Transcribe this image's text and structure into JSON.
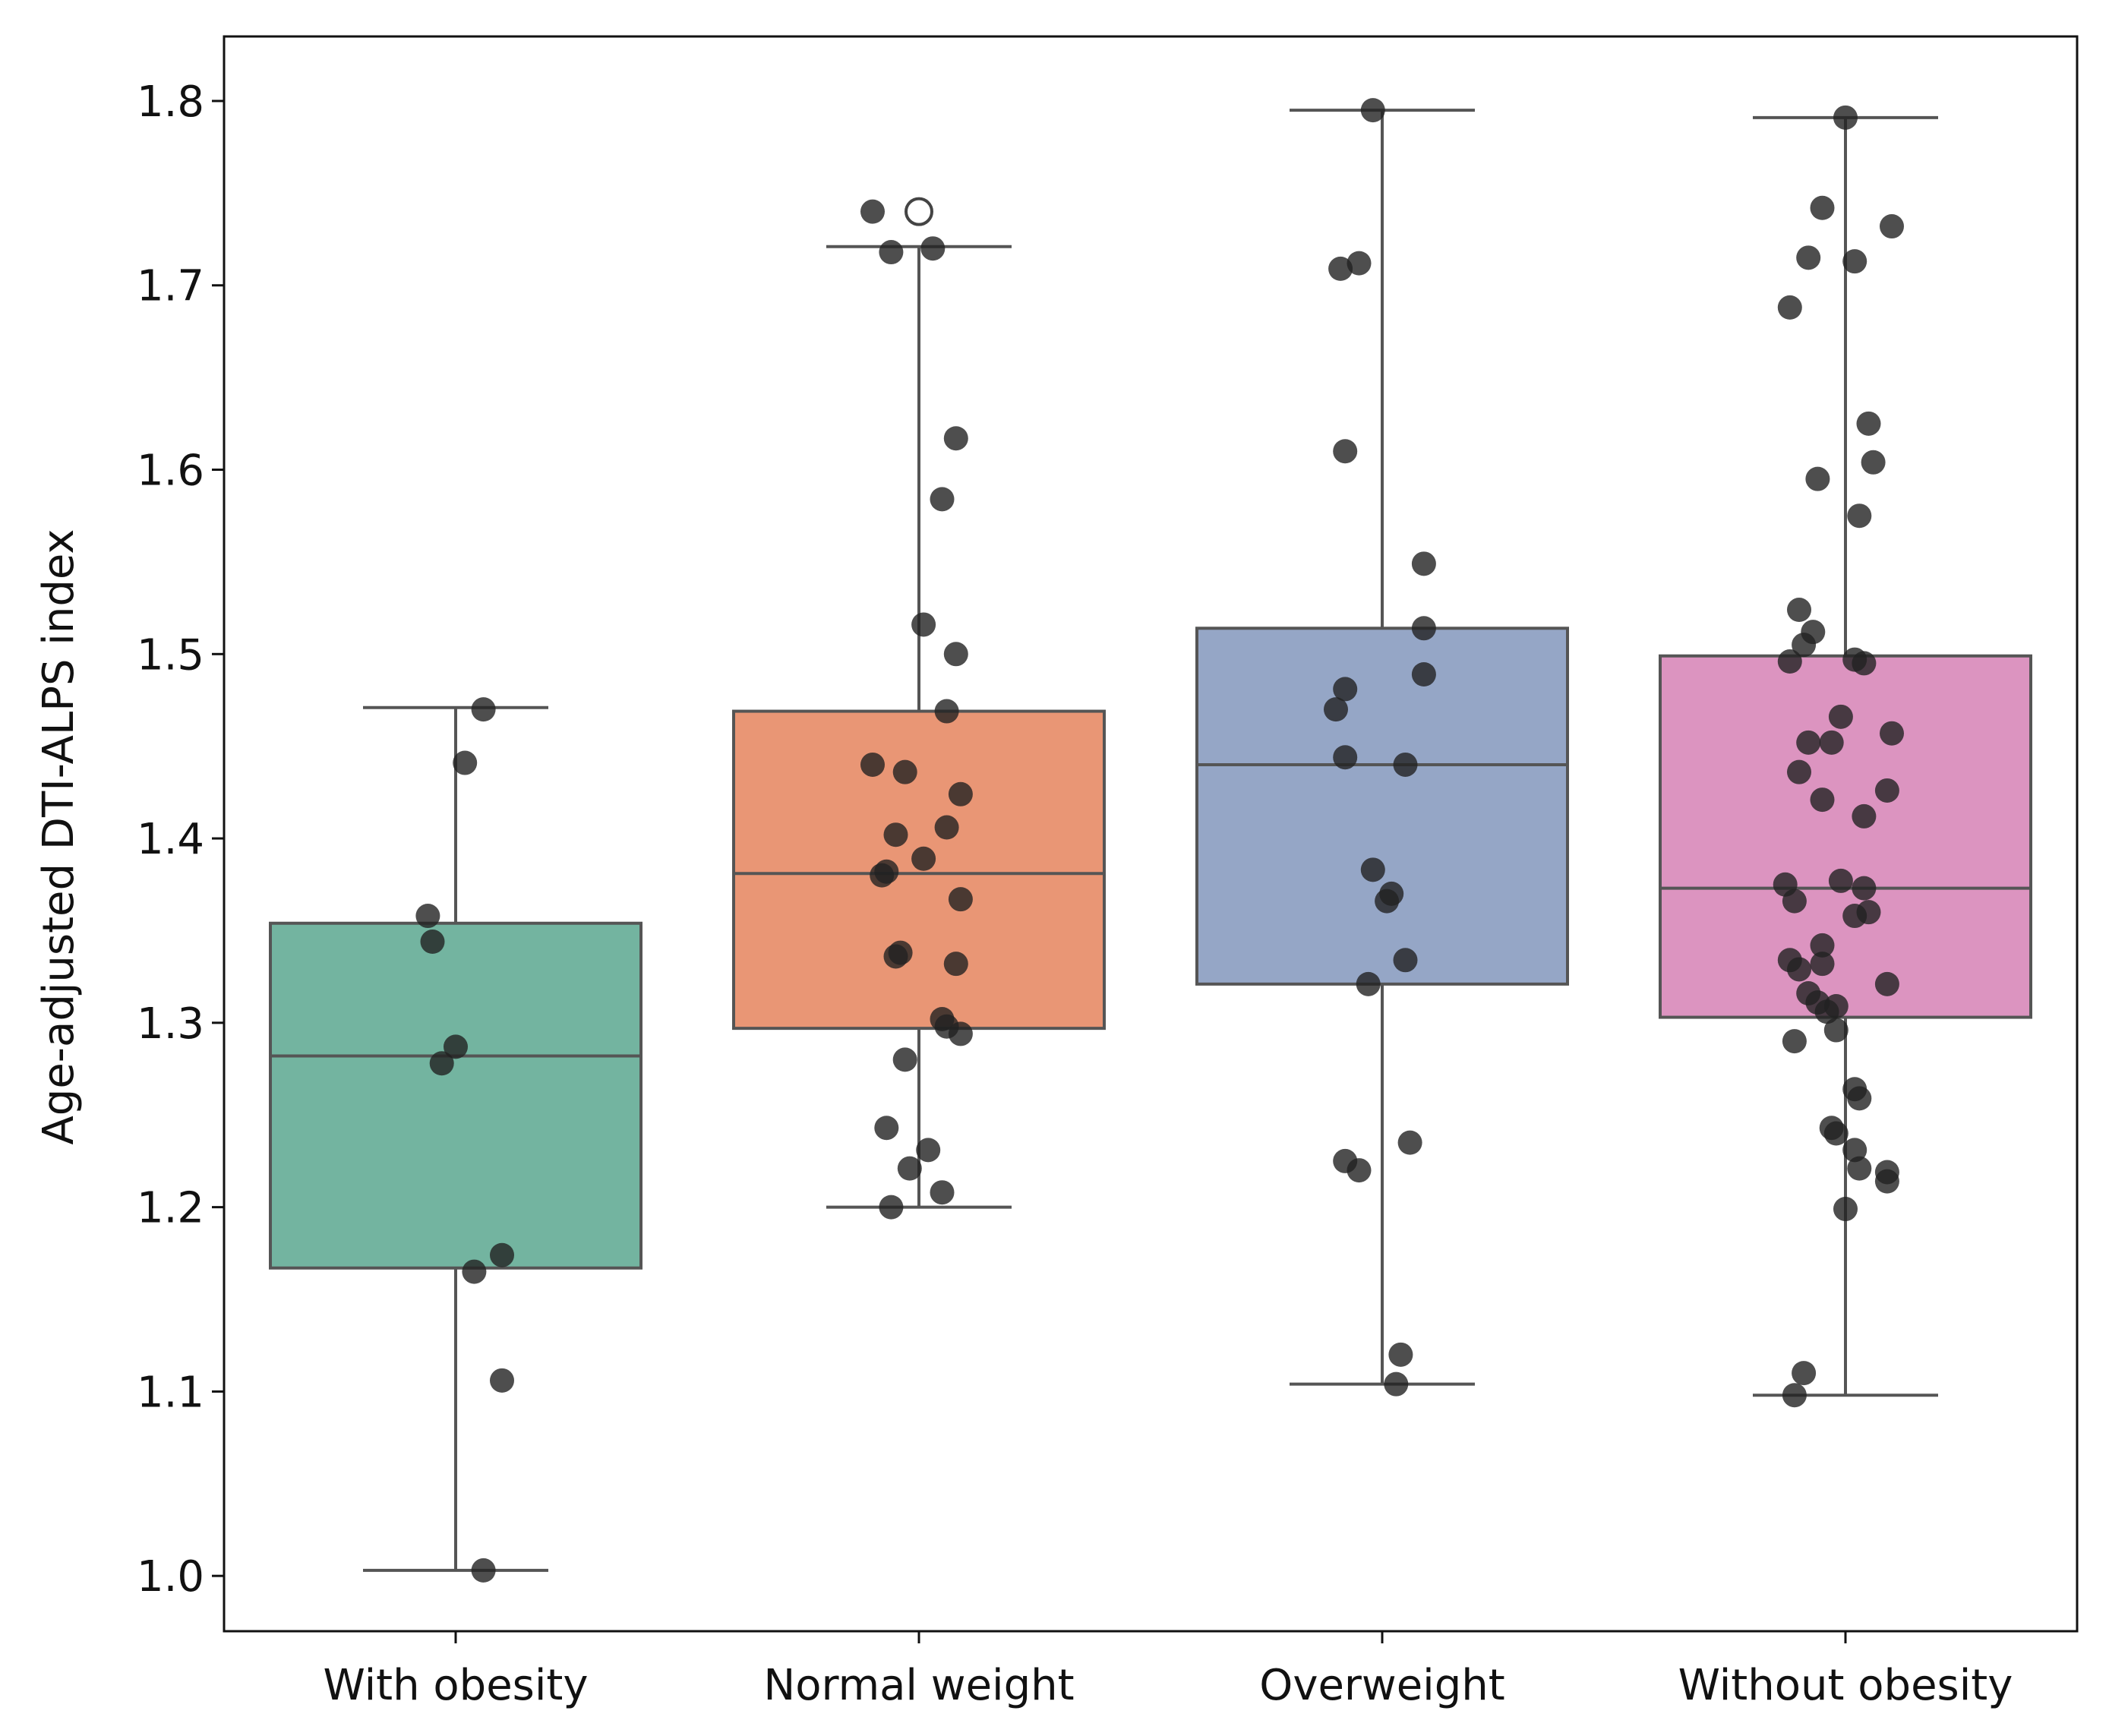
{
  "chart_data": {
    "type": "box",
    "title": "",
    "xlabel": "",
    "ylabel": "Age-adjusted DTI-ALPS index",
    "ylim": [
      0.97,
      1.835
    ],
    "yticks": [
      1.0,
      1.1,
      1.2,
      1.3,
      1.4,
      1.5,
      1.6,
      1.7,
      1.8
    ],
    "ytick_labels": [
      "1.0",
      "1.1",
      "1.2",
      "1.3",
      "1.4",
      "1.5",
      "1.6",
      "1.7",
      "1.8"
    ],
    "grid": false,
    "categories": [
      "With obesity",
      "Normal weight",
      "Overweight",
      "Without obesity"
    ],
    "colors": [
      "#73b4a0",
      "#e99675",
      "#95a6c6",
      "#dc94c0"
    ],
    "point_color": "#222222",
    "boxes": [
      {
        "name": "With obesity",
        "whisker_low": 1.003,
        "q1": 1.167,
        "median": 1.282,
        "q3": 1.354,
        "whisker_high": 1.471,
        "outliers": [],
        "points": [
          {
            "y": 1.47,
            "dx": 0.06
          },
          {
            "y": 1.441,
            "dx": 0.02
          },
          {
            "y": 1.358,
            "dx": -0.06
          },
          {
            "y": 1.344,
            "dx": -0.05
          },
          {
            "y": 1.287,
            "dx": 0.0
          },
          {
            "y": 1.278,
            "dx": -0.03
          },
          {
            "y": 1.174,
            "dx": 0.1
          },
          {
            "y": 1.165,
            "dx": 0.04
          },
          {
            "y": 1.106,
            "dx": 0.1
          },
          {
            "y": 1.003,
            "dx": 0.06
          }
        ]
      },
      {
        "name": "Normal weight",
        "whisker_low": 1.2,
        "q1": 1.297,
        "median": 1.381,
        "q3": 1.469,
        "whisker_high": 1.721,
        "outliers": [
          1.74
        ],
        "points": [
          {
            "y": 1.74,
            "dx": -0.1
          },
          {
            "y": 1.718,
            "dx": -0.06
          },
          {
            "y": 1.72,
            "dx": 0.03
          },
          {
            "y": 1.617,
            "dx": 0.08
          },
          {
            "y": 1.584,
            "dx": 0.05
          },
          {
            "y": 1.516,
            "dx": 0.01
          },
          {
            "y": 1.5,
            "dx": 0.08
          },
          {
            "y": 1.469,
            "dx": 0.06
          },
          {
            "y": 1.44,
            "dx": -0.1
          },
          {
            "y": 1.436,
            "dx": -0.03
          },
          {
            "y": 1.424,
            "dx": 0.09
          },
          {
            "y": 1.406,
            "dx": 0.06
          },
          {
            "y": 1.402,
            "dx": -0.05
          },
          {
            "y": 1.389,
            "dx": 0.01
          },
          {
            "y": 1.38,
            "dx": -0.08
          },
          {
            "y": 1.382,
            "dx": -0.07
          },
          {
            "y": 1.367,
            "dx": 0.09
          },
          {
            "y": 1.338,
            "dx": -0.04
          },
          {
            "y": 1.336,
            "dx": -0.05
          },
          {
            "y": 1.332,
            "dx": 0.08
          },
          {
            "y": 1.302,
            "dx": 0.05
          },
          {
            "y": 1.298,
            "dx": 0.06
          },
          {
            "y": 1.294,
            "dx": 0.09
          },
          {
            "y": 1.28,
            "dx": -0.03
          },
          {
            "y": 1.243,
            "dx": -0.07
          },
          {
            "y": 1.231,
            "dx": 0.02
          },
          {
            "y": 1.221,
            "dx": -0.02
          },
          {
            "y": 1.208,
            "dx": 0.05
          },
          {
            "y": 1.2,
            "dx": -0.06
          }
        ]
      },
      {
        "name": "Overweight",
        "whisker_low": 1.104,
        "q1": 1.321,
        "median": 1.44,
        "q3": 1.514,
        "whisker_high": 1.795,
        "outliers": [],
        "points": [
          {
            "y": 1.795,
            "dx": -0.02
          },
          {
            "y": 1.712,
            "dx": -0.05
          },
          {
            "y": 1.709,
            "dx": -0.09
          },
          {
            "y": 1.61,
            "dx": -0.08
          },
          {
            "y": 1.549,
            "dx": 0.09
          },
          {
            "y": 1.514,
            "dx": 0.09
          },
          {
            "y": 1.489,
            "dx": 0.09
          },
          {
            "y": 1.481,
            "dx": -0.08
          },
          {
            "y": 1.47,
            "dx": -0.1
          },
          {
            "y": 1.444,
            "dx": -0.08
          },
          {
            "y": 1.44,
            "dx": 0.05
          },
          {
            "y": 1.383,
            "dx": -0.02
          },
          {
            "y": 1.37,
            "dx": 0.02
          },
          {
            "y": 1.366,
            "dx": 0.01
          },
          {
            "y": 1.334,
            "dx": 0.05
          },
          {
            "y": 1.321,
            "dx": -0.03
          },
          {
            "y": 1.235,
            "dx": 0.06
          },
          {
            "y": 1.225,
            "dx": -0.08
          },
          {
            "y": 1.22,
            "dx": -0.05
          },
          {
            "y": 1.12,
            "dx": 0.04
          },
          {
            "y": 1.104,
            "dx": 0.03
          }
        ]
      },
      {
        "name": "Without obesity",
        "whisker_low": 1.098,
        "q1": 1.303,
        "median": 1.373,
        "q3": 1.499,
        "whisker_high": 1.791,
        "outliers": [],
        "points": [
          {
            "y": 1.791,
            "dx": 0.0
          },
          {
            "y": 1.742,
            "dx": -0.05
          },
          {
            "y": 1.732,
            "dx": 0.1
          },
          {
            "y": 1.715,
            "dx": -0.08
          },
          {
            "y": 1.713,
            "dx": 0.02
          },
          {
            "y": 1.688,
            "dx": -0.12
          },
          {
            "y": 1.625,
            "dx": 0.05
          },
          {
            "y": 1.604,
            "dx": 0.06
          },
          {
            "y": 1.595,
            "dx": -0.06
          },
          {
            "y": 1.575,
            "dx": 0.03
          },
          {
            "y": 1.524,
            "dx": -0.1
          },
          {
            "y": 1.512,
            "dx": -0.07
          },
          {
            "y": 1.505,
            "dx": -0.09
          },
          {
            "y": 1.497,
            "dx": 0.02
          },
          {
            "y": 1.496,
            "dx": -0.12
          },
          {
            "y": 1.495,
            "dx": 0.04
          },
          {
            "y": 1.466,
            "dx": -0.01
          },
          {
            "y": 1.457,
            "dx": 0.1
          },
          {
            "y": 1.452,
            "dx": -0.08
          },
          {
            "y": 1.452,
            "dx": -0.03
          },
          {
            "y": 1.436,
            "dx": -0.1
          },
          {
            "y": 1.426,
            "dx": 0.09
          },
          {
            "y": 1.421,
            "dx": -0.05
          },
          {
            "y": 1.412,
            "dx": 0.04
          },
          {
            "y": 1.377,
            "dx": -0.01
          },
          {
            "y": 1.375,
            "dx": -0.13
          },
          {
            "y": 1.373,
            "dx": 0.04
          },
          {
            "y": 1.366,
            "dx": -0.11
          },
          {
            "y": 1.36,
            "dx": 0.05
          },
          {
            "y": 1.358,
            "dx": 0.02
          },
          {
            "y": 1.342,
            "dx": -0.05
          },
          {
            "y": 1.334,
            "dx": -0.12
          },
          {
            "y": 1.332,
            "dx": -0.05
          },
          {
            "y": 1.329,
            "dx": -0.1
          },
          {
            "y": 1.321,
            "dx": 0.09
          },
          {
            "y": 1.316,
            "dx": -0.08
          },
          {
            "y": 1.311,
            "dx": -0.06
          },
          {
            "y": 1.309,
            "dx": -0.02
          },
          {
            "y": 1.306,
            "dx": -0.04
          },
          {
            "y": 1.296,
            "dx": -0.02
          },
          {
            "y": 1.29,
            "dx": -0.11
          },
          {
            "y": 1.264,
            "dx": 0.02
          },
          {
            "y": 1.259,
            "dx": 0.03
          },
          {
            "y": 1.243,
            "dx": -0.03
          },
          {
            "y": 1.24,
            "dx": -0.02
          },
          {
            "y": 1.231,
            "dx": 0.02
          },
          {
            "y": 1.221,
            "dx": 0.03
          },
          {
            "y": 1.219,
            "dx": 0.09
          },
          {
            "y": 1.214,
            "dx": 0.09
          },
          {
            "y": 1.199,
            "dx": 0.0
          },
          {
            "y": 1.11,
            "dx": -0.09
          },
          {
            "y": 1.098,
            "dx": -0.11
          }
        ]
      }
    ]
  }
}
